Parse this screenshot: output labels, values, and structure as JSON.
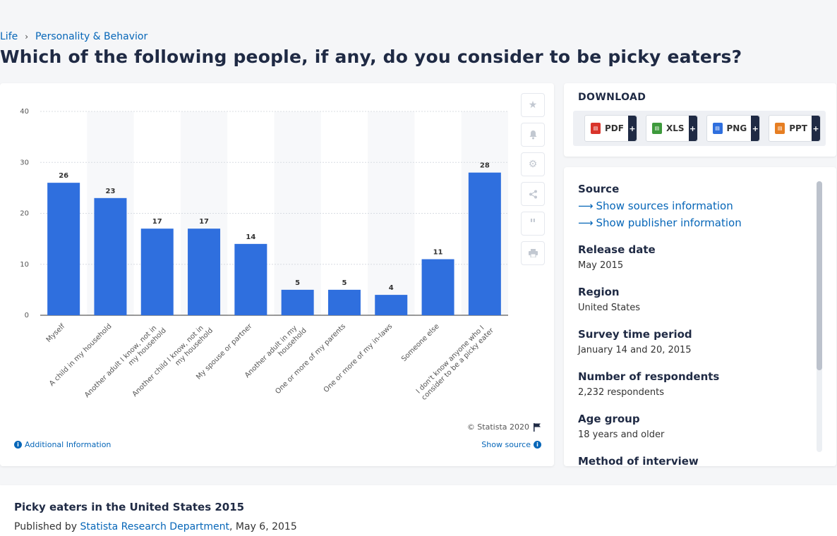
{
  "breadcrumb": {
    "items": [
      "Life",
      "Personality & Behavior"
    ]
  },
  "page_title": "Which of the following people, if any, do you consider to be picky eaters?",
  "chart_data": {
    "type": "bar",
    "categories": [
      "Myself",
      "A child in my household",
      "Another adult I know, not in my household",
      "Another child I know, not in my household",
      "My spouse or partner",
      "Another adult in my household",
      "One or more of my parents",
      "One or more of my in-laws",
      "Someone else",
      "I don't know anyone who I consider to be a picky eater"
    ],
    "category_lines": [
      [
        "Myself"
      ],
      [
        "A child in my household"
      ],
      [
        "Another adult I know, not in",
        "my household"
      ],
      [
        "Another child I know, not in",
        "my household"
      ],
      [
        "My spouse or partner"
      ],
      [
        "Another adult in my",
        "household"
      ],
      [
        "One or more of my parents"
      ],
      [
        "One or more of my in-laws"
      ],
      [
        "Someone else"
      ],
      [
        "I don't know anyone who I",
        "consider to be a picky eater"
      ]
    ],
    "values": [
      26,
      23,
      17,
      17,
      14,
      5,
      5,
      4,
      11,
      28
    ],
    "ylim": [
      0,
      40
    ],
    "yticks": [
      "0",
      "10",
      "20",
      "30",
      "40"
    ],
    "grid": true,
    "bar_color": "#2f6fde"
  },
  "chart_footer": {
    "copyright": "© Statista 2020",
    "additional_info": "Additional Information",
    "show_source": "Show source"
  },
  "download": {
    "title": "DOWNLOAD",
    "buttons": [
      {
        "label": "PDF",
        "icon": "pdf-file-icon",
        "color": "#d9342b"
      },
      {
        "label": "XLS",
        "icon": "xls-file-icon",
        "color": "#3e9a3c"
      },
      {
        "label": "PNG",
        "icon": "png-file-icon",
        "color": "#2f6fde"
      },
      {
        "label": "PPT",
        "icon": "ppt-file-icon",
        "color": "#e67e22"
      }
    ],
    "plus": "+"
  },
  "meta": {
    "source_label": "Source",
    "show_sources": "Show sources information",
    "show_publisher": "Show publisher information",
    "release_date_label": "Release date",
    "release_date": "May 2015",
    "region_label": "Region",
    "region": "United States",
    "survey_period_label": "Survey time period",
    "survey_period": "January 14 and 20, 2015",
    "respondents_label": "Number of respondents",
    "respondents": "2,232 respondents",
    "age_group_label": "Age group",
    "age_group": "18 years and older",
    "method_label": "Method of interview"
  },
  "bottom": {
    "title": "Picky eaters in the United States 2015",
    "published_by": "Published by",
    "publisher": "Statista Research Department",
    "date": ", May 6, 2015"
  }
}
